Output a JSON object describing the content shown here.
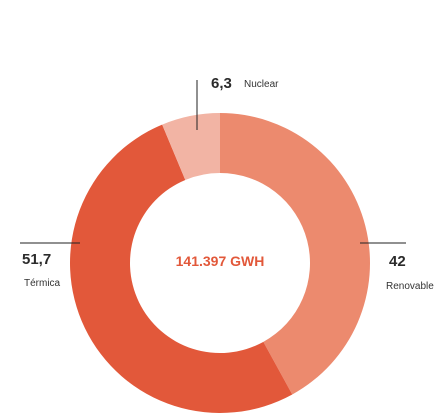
{
  "chart_data": {
    "type": "pie",
    "center_label": "141.397 GWH",
    "slices": [
      {
        "name": "Renovable",
        "value": 42,
        "value_label": "42",
        "color": "#ec8a6e"
      },
      {
        "name": "Térmica",
        "value": 51.7,
        "value_label": "51,7",
        "color": "#e2583a"
      },
      {
        "name": "Nuclear",
        "value": 6.3,
        "value_label": "6,3",
        "color": "#f2b4a4"
      }
    ]
  }
}
